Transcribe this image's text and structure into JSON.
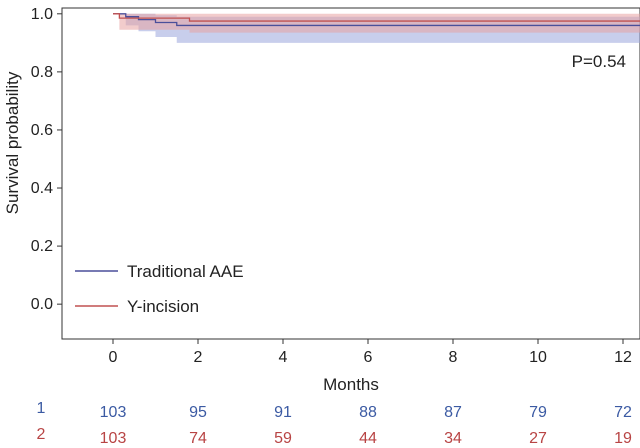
{
  "chart_data": {
    "type": "line",
    "subtype": "kaplan-meier",
    "xlabel": "Months",
    "ylabel": "Survival probability",
    "xlim": [
      -1.2,
      12.4
    ],
    "ylim": [
      -0.12,
      1.02
    ],
    "x_ticks": [
      0,
      2,
      4,
      6,
      8,
      10,
      12
    ],
    "y_ticks": [
      0.0,
      0.2,
      0.4,
      0.6,
      0.8,
      1.0
    ],
    "y_tick_labels": [
      "0.0",
      "0.2",
      "0.4",
      "0.6",
      "0.8",
      "1.0"
    ],
    "p_value_text": "P=0.54",
    "legend": [
      "Traditional AAE",
      "Y-incision"
    ],
    "colors": {
      "series1_line": "#4a4f9a",
      "series1_band": "#9aa6dc",
      "series2_line": "#c05050",
      "series2_band": "#e8a3a3",
      "risk1_text": "#3b5aa3",
      "risk2_text": "#b84444"
    },
    "series": [
      {
        "name": "Traditional AAE",
        "line_color": "#4a4f9a",
        "step_x": [
          0,
          0.3,
          0.6,
          1.0,
          1.5,
          12.4
        ],
        "step_y": [
          1.0,
          0.99,
          0.98,
          0.97,
          0.96,
          0.96
        ],
        "ci_lower": [
          1.0,
          0.96,
          0.94,
          0.92,
          0.9,
          0.9
        ],
        "ci_upper": [
          1.0,
          1.0,
          1.0,
          0.995,
          0.99,
          0.99
        ]
      },
      {
        "name": "Y-incision",
        "line_color": "#c05050",
        "step_x": [
          0,
          0.15,
          1.8,
          12.4
        ],
        "step_y": [
          1.0,
          0.985,
          0.975,
          0.975
        ],
        "ci_lower": [
          1.0,
          0.945,
          0.935,
          0.905
        ],
        "ci_upper": [
          1.0,
          1.0,
          1.0,
          1.0
        ]
      }
    ],
    "risk_table": {
      "rows": [
        {
          "label": "1",
          "values": [
            "103",
            "95",
            "91",
            "88",
            "87",
            "79",
            "72"
          ]
        },
        {
          "label": "2",
          "values": [
            "103",
            "74",
            "59",
            "44",
            "34",
            "27",
            "19"
          ]
        }
      ]
    }
  }
}
